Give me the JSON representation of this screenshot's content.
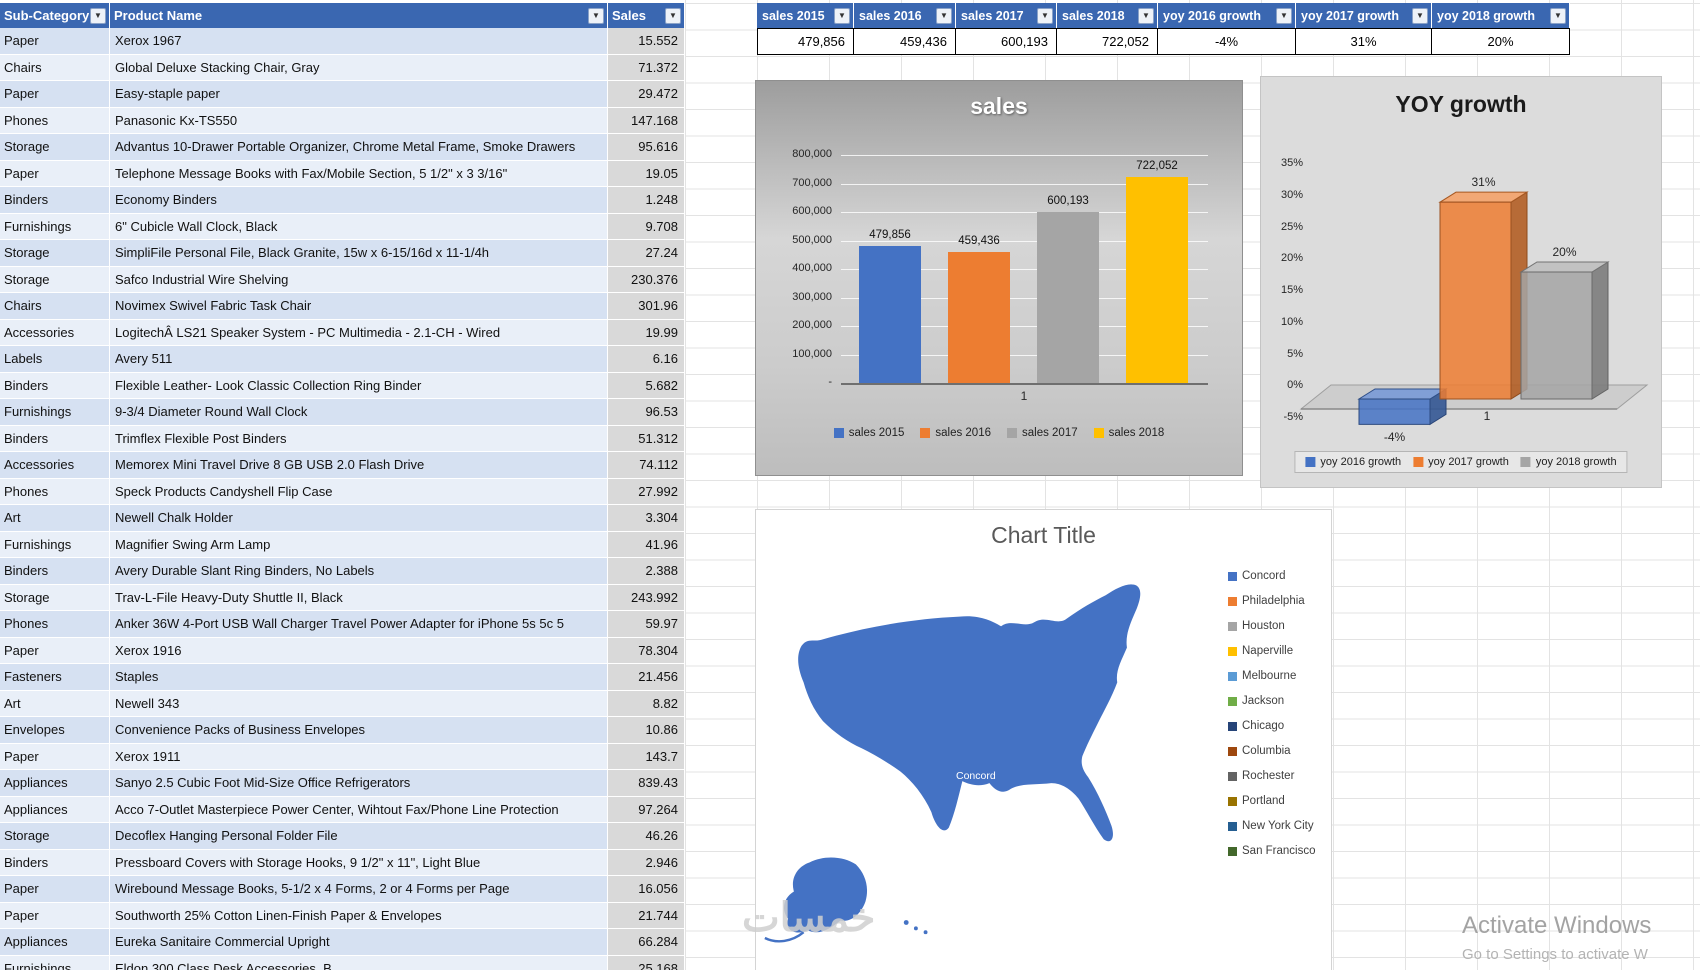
{
  "colors": {
    "table_header": "#3A67B1",
    "band_a": "#D6E1F2",
    "band_b": "#E9EFF8",
    "sales_col": "#D9D9D9",
    "accent_blue": "#4472C4",
    "accent_orange": "#ED7D31",
    "accent_gray": "#A5A5A5",
    "accent_yellow": "#FFC000"
  },
  "table": {
    "headers": [
      "Sub-Category",
      "Product Name",
      "Sales"
    ],
    "rows": [
      [
        "Paper",
        "Xerox 1967",
        "15.552"
      ],
      [
        "Chairs",
        "Global Deluxe Stacking Chair, Gray",
        "71.372"
      ],
      [
        "Paper",
        "Easy-staple paper",
        "29.472"
      ],
      [
        "Phones",
        "Panasonic Kx-TS550",
        "147.168"
      ],
      [
        "Storage",
        "Advantus 10-Drawer Portable Organizer, Chrome Metal Frame, Smoke Drawers",
        "95.616"
      ],
      [
        "Paper",
        "Telephone Message Books with Fax/Mobile Section, 5 1/2\" x 3 3/16\"",
        "19.05"
      ],
      [
        "Binders",
        "Economy Binders",
        "1.248"
      ],
      [
        "Furnishings",
        "6\" Cubicle Wall Clock, Black",
        "9.708"
      ],
      [
        "Storage",
        "SimpliFile Personal File, Black Granite, 15w x 6-15/16d x 11-1/4h",
        "27.24"
      ],
      [
        "Storage",
        "Safco Industrial Wire Shelving",
        "230.376"
      ],
      [
        "Chairs",
        "Novimex Swivel Fabric Task Chair",
        "301.96"
      ],
      [
        "Accessories",
        "LogitechÂ LS21 Speaker System - PC Multimedia - 2.1-CH - Wired",
        "19.99"
      ],
      [
        "Labels",
        "Avery 511",
        "6.16"
      ],
      [
        "Binders",
        "Flexible Leather- Look Classic Collection Ring Binder",
        "5.682"
      ],
      [
        "Furnishings",
        "9-3/4 Diameter Round Wall Clock",
        "96.53"
      ],
      [
        "Binders",
        "Trimflex Flexible Post Binders",
        "51.312"
      ],
      [
        "Accessories",
        "Memorex Mini Travel Drive 8 GB USB 2.0 Flash Drive",
        "74.112"
      ],
      [
        "Phones",
        "Speck Products Candyshell Flip Case",
        "27.992"
      ],
      [
        "Art",
        "Newell Chalk Holder",
        "3.304"
      ],
      [
        "Furnishings",
        "Magnifier Swing Arm Lamp",
        "41.96"
      ],
      [
        "Binders",
        "Avery Durable Slant Ring Binders, No Labels",
        "2.388"
      ],
      [
        "Storage",
        "Trav-L-File Heavy-Duty Shuttle II, Black",
        "243.992"
      ],
      [
        "Phones",
        "Anker 36W 4-Port USB Wall Charger Travel Power Adapter for iPhone 5s 5c 5",
        "59.97"
      ],
      [
        "Paper",
        "Xerox 1916",
        "78.304"
      ],
      [
        "Fasteners",
        "Staples",
        "21.456"
      ],
      [
        "Art",
        "Newell 343",
        "8.82"
      ],
      [
        "Envelopes",
        "Convenience Packs of Business Envelopes",
        "10.86"
      ],
      [
        "Paper",
        "Xerox 1911",
        "143.7"
      ],
      [
        "Appliances",
        "Sanyo 2.5 Cubic Foot Mid-Size Office Refrigerators",
        "839.43"
      ],
      [
        "Appliances",
        "Acco 7-Outlet Masterpiece Power Center, Wihtout Fax/Phone Line Protection",
        "97.264"
      ],
      [
        "Storage",
        "Decoflex Hanging Personal Folder File",
        "46.26"
      ],
      [
        "Binders",
        "Pressboard Covers with Storage Hooks, 9 1/2\" x 11\", Light Blue",
        "2.946"
      ],
      [
        "Paper",
        "Wirebound Message Books, 5-1/2 x 4 Forms, 2 or 4 Forms per Page",
        "16.056"
      ],
      [
        "Paper",
        "Southworth 25% Cotton Linen-Finish Paper & Envelopes",
        "21.744"
      ],
      [
        "Appliances",
        "Eureka Sanitaire  Commercial Upright",
        "66.284"
      ],
      [
        "Furnishings",
        "Eldon 300 Class Desk Accessories, B",
        "25.168"
      ]
    ]
  },
  "summary": {
    "headers": [
      "sales  2015",
      "sales  2016",
      "sales  2017",
      "sales  2018",
      "yoy 2016 growth",
      "yoy 2017 growth",
      "yoy 2018 growth"
    ],
    "values": [
      "479,856",
      "459,436",
      "600,193",
      "722,052",
      "-4%",
      "31%",
      "20%"
    ]
  },
  "chart_data": [
    {
      "type": "bar",
      "title": "sales",
      "categories": [
        "1"
      ],
      "series": [
        {
          "name": "sales  2015",
          "values": [
            479856
          ],
          "label": "479,856",
          "color": "#4472C4"
        },
        {
          "name": "sales  2016",
          "values": [
            459436
          ],
          "label": "459,436",
          "color": "#ED7D31"
        },
        {
          "name": "sales  2017",
          "values": [
            600193
          ],
          "label": "600,193",
          "color": "#A5A5A5"
        },
        {
          "name": "sales  2018",
          "values": [
            722052
          ],
          "label": "722,052",
          "color": "#FFC000"
        }
      ],
      "ylim": [
        0,
        800000
      ],
      "yticks": [
        "800,000",
        "700,000",
        "600,000",
        "500,000",
        "400,000",
        "300,000",
        "200,000",
        "100,000",
        "-"
      ],
      "legend_position": "bottom",
      "grid": true
    },
    {
      "type": "bar3d",
      "title": "YOY growth",
      "categories": [
        "1"
      ],
      "series": [
        {
          "name": "yoy 2016 growth",
          "values": [
            -4
          ],
          "label": "-4%",
          "color": "#4472C4"
        },
        {
          "name": "yoy 2017 growth",
          "values": [
            31
          ],
          "label": "31%",
          "color": "#ED7D31"
        },
        {
          "name": "yoy 2018 growth",
          "values": [
            20
          ],
          "label": "20%",
          "color": "#A5A5A5"
        }
      ],
      "ylim": [
        -5,
        35
      ],
      "yticks": [
        "35%",
        "30%",
        "25%",
        "20%",
        "15%",
        "10%",
        "5%",
        "0%",
        "-5%"
      ],
      "legend_position": "bottom",
      "grid": false
    },
    {
      "type": "map",
      "title": "Chart Title",
      "map_label": "Concord",
      "legend_position": "right",
      "legend": [
        {
          "name": "Concord",
          "color": "#4472C4"
        },
        {
          "name": "Philadelphia",
          "color": "#ED7D31"
        },
        {
          "name": "Houston",
          "color": "#A5A5A5"
        },
        {
          "name": "Naperville",
          "color": "#FFC000"
        },
        {
          "name": "Melbourne",
          "color": "#5B9BD5"
        },
        {
          "name": "Jackson",
          "color": "#70AD47"
        },
        {
          "name": "Chicago",
          "color": "#264478"
        },
        {
          "name": "Columbia",
          "color": "#9E480E"
        },
        {
          "name": "Rochester",
          "color": "#636363"
        },
        {
          "name": "Portland",
          "color": "#997300"
        },
        {
          "name": "New York City",
          "color": "#255E91"
        },
        {
          "name": "San Francisco",
          "color": "#43682B"
        }
      ]
    }
  ],
  "watermark": "خمسات",
  "activate": {
    "line1": "Activate Windows",
    "line2": "Go to Settings to activate W"
  }
}
